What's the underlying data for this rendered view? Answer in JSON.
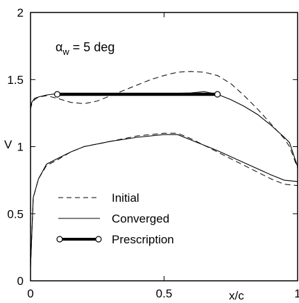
{
  "chart_data": {
    "type": "line",
    "xlabel": "x/c",
    "ylabel": "V",
    "xlim": [
      0,
      1
    ],
    "ylim": [
      0,
      2
    ],
    "x_ticks": [
      "0",
      "0.5",
      "1"
    ],
    "y_ticks": [
      "0",
      "0.5",
      "1",
      "1.5",
      "2"
    ],
    "annotation": {
      "symbol": "α",
      "subscript": "w",
      "text": " = 5 deg"
    },
    "legend": {
      "placement": "bottom-left",
      "entries": [
        "Initial",
        "Converged",
        "Prescription"
      ]
    },
    "series": [
      {
        "name": "Initial",
        "style": "dashed",
        "surface": "upper",
        "x": [
          0.0,
          0.005,
          0.015,
          0.03,
          0.06,
          0.1,
          0.15,
          0.2,
          0.25,
          0.3,
          0.35,
          0.4,
          0.45,
          0.5,
          0.55,
          0.6,
          0.65,
          0.7,
          0.75,
          0.8,
          0.85,
          0.9,
          0.95,
          0.97,
          1.0
        ],
        "y": [
          1.28,
          1.32,
          1.35,
          1.37,
          1.38,
          1.36,
          1.33,
          1.32,
          1.34,
          1.38,
          1.42,
          1.46,
          1.5,
          1.53,
          1.555,
          1.56,
          1.555,
          1.53,
          1.47,
          1.38,
          1.28,
          1.17,
          1.06,
          1.0,
          0.84
        ]
      },
      {
        "name": "Initial",
        "style": "dashed",
        "surface": "lower",
        "x": [
          0.0,
          0.01,
          0.03,
          0.06,
          0.1,
          0.15,
          0.2,
          0.3,
          0.4,
          0.5,
          0.55,
          0.6,
          0.7,
          0.8,
          0.9,
          0.95,
          1.0
        ],
        "y": [
          0.1,
          0.62,
          0.76,
          0.86,
          0.9,
          0.96,
          1.0,
          1.04,
          1.08,
          1.1,
          1.1,
          1.06,
          0.96,
          0.86,
          0.76,
          0.72,
          0.71
        ]
      },
      {
        "name": "Converged",
        "style": "solid",
        "surface": "upper",
        "x": [
          0.0,
          0.005,
          0.015,
          0.03,
          0.06,
          0.1,
          0.2,
          0.3,
          0.4,
          0.5,
          0.6,
          0.65,
          0.7,
          0.75,
          0.8,
          0.85,
          0.9,
          0.95,
          0.97,
          1.0
        ],
        "y": [
          1.3,
          1.33,
          1.36,
          1.37,
          1.385,
          1.395,
          1.395,
          1.395,
          1.395,
          1.395,
          1.4,
          1.41,
          1.39,
          1.35,
          1.3,
          1.24,
          1.16,
          1.07,
          1.03,
          0.85
        ]
      },
      {
        "name": "Converged",
        "style": "solid",
        "surface": "lower",
        "x": [
          0.0,
          0.01,
          0.03,
          0.06,
          0.1,
          0.15,
          0.2,
          0.3,
          0.4,
          0.5,
          0.55,
          0.6,
          0.7,
          0.8,
          0.9,
          0.95,
          1.0
        ],
        "y": [
          0.1,
          0.62,
          0.76,
          0.87,
          0.91,
          0.96,
          1.0,
          1.04,
          1.07,
          1.09,
          1.09,
          1.05,
          0.97,
          0.88,
          0.79,
          0.75,
          0.74
        ]
      },
      {
        "name": "Prescription",
        "style": "thick-endpoints",
        "x": [
          0.1,
          0.7
        ],
        "y": [
          1.39,
          1.39
        ]
      }
    ]
  }
}
